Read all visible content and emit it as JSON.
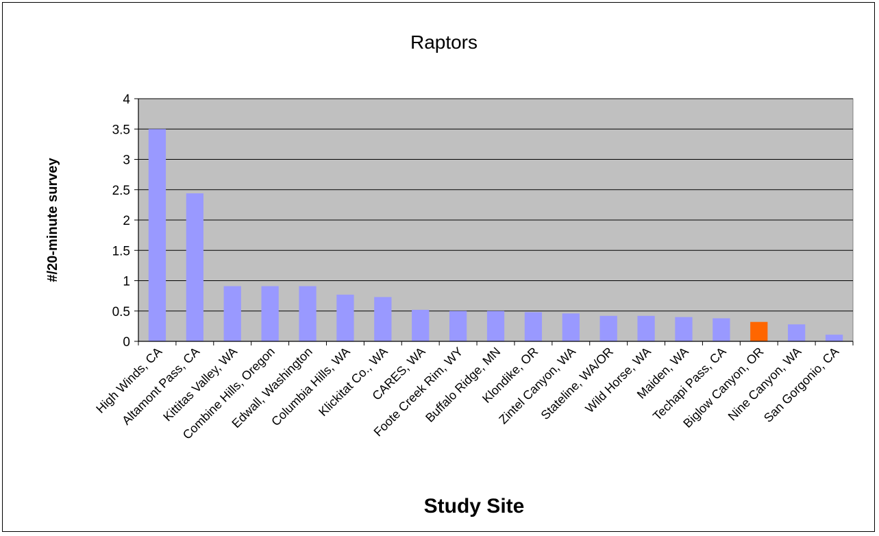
{
  "chart_data": {
    "type": "bar",
    "title": "Raptors",
    "xlabel": "Study Site",
    "ylabel": "#/20-minute survey",
    "ylim": [
      0,
      4
    ],
    "yticks": [
      "0",
      "0.5",
      "1",
      "1.5",
      "2",
      "2.5",
      "3",
      "3.5",
      "4"
    ],
    "grid": true,
    "categories": [
      "High Winds, CA",
      "Altamont Pass, CA",
      "Kittitas Valley, WA",
      "Combine Hills, Oregon",
      "Edwall, Washington",
      "Columbia Hills, WA",
      "Klickitat Co., WA",
      "CARES, WA",
      "Foote Creek Rim, WY",
      "Buffalo Ridge, MN",
      "Klondike, OR",
      "Zintel Canyon, WA",
      "Stateline, WA/OR",
      "Wild Horse, WA",
      "Maiden, WA",
      "Techapi Pass, CA",
      "Biglow Canyon, OR",
      "Nine Canyon, WA",
      "San Gorgonio, CA"
    ],
    "values": [
      3.5,
      2.44,
      0.91,
      0.91,
      0.91,
      0.77,
      0.73,
      0.52,
      0.5,
      0.5,
      0.48,
      0.46,
      0.42,
      0.42,
      0.4,
      0.38,
      0.32,
      0.28,
      0.11
    ],
    "highlight_category": "Biglow Canyon, OR",
    "colors": {
      "bar": "#9999ff",
      "highlight": "#ff6600",
      "plot_background": "#c0c0c0",
      "gridline": "#000000"
    }
  }
}
